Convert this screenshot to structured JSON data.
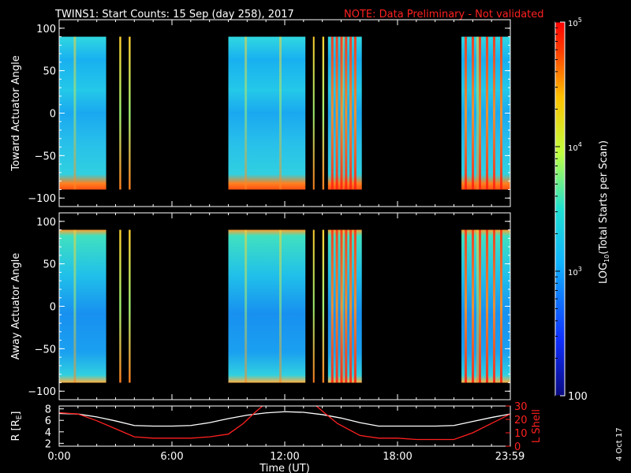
{
  "title": "TWINS1: Start Counts: 15 Sep (day 258), 2017",
  "note": "NOTE: Data Preliminary - Not validated",
  "date_stamp": "4 Oct 17",
  "colorbar": {
    "label": "LOG10(Total Starts per Scan)",
    "label_main": "LOG",
    "label_sub": "10",
    "label_rest": "(Total Starts per Scan)",
    "ticks": [
      {
        "value": 100,
        "text": "100",
        "large": true
      },
      {
        "value": 1000,
        "text": "10",
        "exp": "3"
      },
      {
        "value": 10000,
        "text": "10",
        "exp": "4"
      },
      {
        "value": 100000,
        "text": "10",
        "exp": "5"
      }
    ],
    "range": [
      100,
      100000
    ],
    "scale": "log"
  },
  "chart_data": [
    {
      "type": "heatmap",
      "ylabel": "Toward Actuator Angle",
      "ylim": [
        -110,
        110
      ],
      "yticks": [
        "100",
        "50",
        "0",
        "−50",
        "−100"
      ],
      "ytick_values": [
        100,
        50,
        0,
        -50,
        -100
      ],
      "xlim": [
        0,
        24
      ],
      "angle_range": [
        -90,
        90
      ],
      "data_blocks_hours": [
        [
          0,
          2.5
        ],
        [
          3.2,
          3.3
        ],
        [
          3.7,
          3.8
        ],
        [
          9.0,
          13.1
        ],
        [
          13.5,
          13.55
        ],
        [
          14.0,
          14.1
        ],
        [
          14.3,
          16.1
        ],
        [
          21.4,
          24
        ]
      ]
    },
    {
      "type": "heatmap",
      "ylabel": "Away Actuator Angle",
      "ylim": [
        -110,
        110
      ],
      "yticks": [
        "100",
        "50",
        "0",
        "−50",
        "−100"
      ],
      "ytick_values": [
        100,
        50,
        0,
        -50,
        -100
      ],
      "xlim": [
        0,
        24
      ],
      "angle_range": [
        -90,
        90
      ],
      "data_blocks_hours": [
        [
          0,
          2.5
        ],
        [
          3.2,
          3.3
        ],
        [
          3.7,
          3.8
        ],
        [
          9.0,
          13.1
        ],
        [
          13.5,
          13.55
        ],
        [
          14.0,
          14.1
        ],
        [
          14.3,
          16.1
        ],
        [
          21.4,
          24
        ]
      ]
    },
    {
      "type": "line",
      "ylabel": "R [RE]",
      "ylabel_main": "R [R",
      "ylabel_sub": "E",
      "ylabel_end": "]",
      "ylim": [
        1.5,
        8.5
      ],
      "yticks": [
        "8",
        "6",
        "4",
        "2"
      ],
      "ytick_values": [
        8,
        6,
        4,
        2
      ],
      "y2label": "L Shell",
      "y2lim": [
        0,
        30
      ],
      "y2ticks": [
        "30",
        "20",
        "10",
        "0"
      ],
      "y2tick_values": [
        30,
        20,
        10,
        0
      ],
      "xlabel": "Time (UT)",
      "xlim": [
        0,
        24
      ],
      "xticks": [
        "0:00",
        "6:00",
        "12:00",
        "18:00",
        "23:59"
      ],
      "xtick_values": [
        0,
        6,
        12,
        18,
        23.98
      ],
      "series": [
        {
          "color": "#ffffff",
          "axis": "left",
          "x": [
            0,
            1,
            2,
            3,
            4,
            5,
            6,
            7,
            8,
            9,
            10,
            11,
            12,
            13,
            14,
            15,
            16,
            17,
            18,
            19,
            20,
            21,
            22,
            23,
            24
          ],
          "y": [
            7.2,
            7.1,
            6.6,
            5.9,
            5.1,
            5.0,
            5.0,
            5.1,
            5.6,
            6.3,
            6.9,
            7.3,
            7.5,
            7.4,
            7.0,
            6.4,
            5.6,
            5.0,
            5.0,
            5.0,
            5.0,
            5.1,
            5.8,
            6.5,
            7.1
          ]
        },
        {
          "color": "#ff2020",
          "axis": "right",
          "x": [
            0,
            1,
            2,
            3,
            4,
            5,
            6,
            7,
            8,
            9,
            9.8,
            10.4,
            10.9,
            13.6,
            14.1,
            14.8,
            16,
            17,
            18,
            19,
            20,
            21,
            22,
            23,
            24
          ],
          "y": [
            25,
            24,
            19,
            13,
            7,
            6,
            6,
            6,
            7,
            9,
            17,
            25,
            31,
            31,
            25,
            17,
            8,
            6,
            6,
            5,
            5,
            5,
            10,
            17,
            24
          ]
        }
      ]
    }
  ]
}
